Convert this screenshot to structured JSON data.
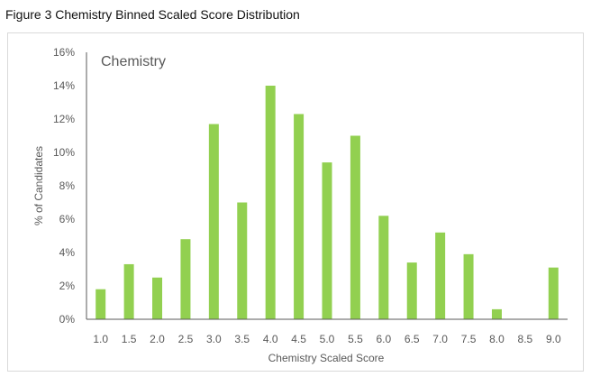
{
  "figure_title": "Figure 3 Chemistry Binned Scaled Score Distribution",
  "chart_data": {
    "type": "bar",
    "title": "Chemistry",
    "xlabel": "Chemistry Scaled Score",
    "ylabel": "% of Candidates",
    "categories": [
      "1.0",
      "1.5",
      "2.0",
      "2.5",
      "3.0",
      "3.5",
      "4.0",
      "4.5",
      "5.0",
      "5.5",
      "6.0",
      "6.5",
      "7.0",
      "7.5",
      "8.0",
      "8.5",
      "9.0"
    ],
    "values": [
      1.8,
      3.3,
      2.5,
      4.8,
      11.7,
      7.0,
      14.0,
      12.3,
      9.4,
      11.0,
      6.2,
      3.4,
      5.2,
      3.9,
      0.6,
      0.0,
      3.1
    ],
    "ylim": [
      0,
      16
    ],
    "yticks": [
      0,
      2,
      4,
      6,
      8,
      10,
      12,
      14,
      16
    ],
    "ytick_labels": [
      "0%",
      "2%",
      "4%",
      "6%",
      "8%",
      "10%",
      "12%",
      "14%",
      "16%"
    ],
    "grid": false,
    "bar_color": "#92d050",
    "axis_color": "#595959"
  }
}
